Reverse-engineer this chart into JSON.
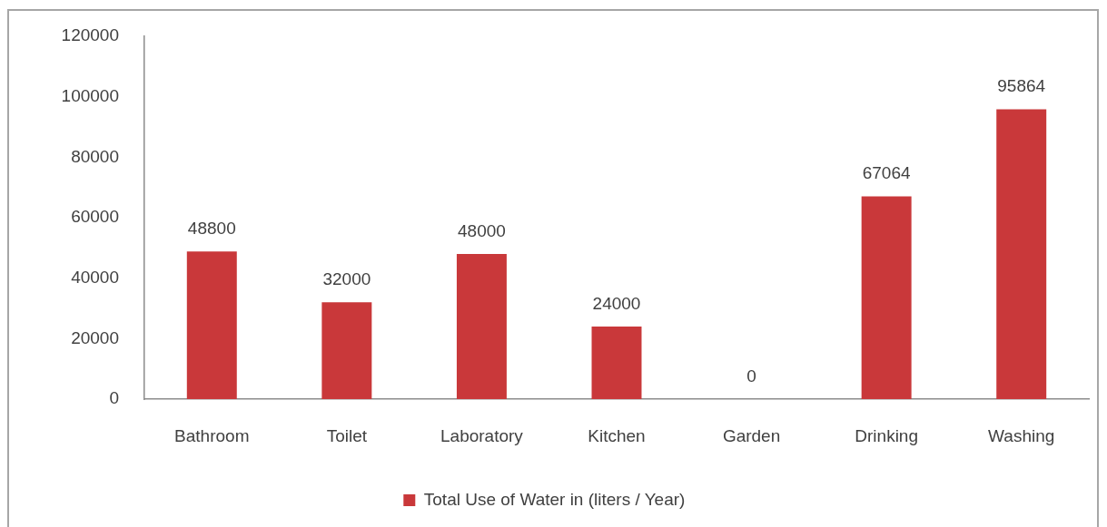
{
  "chart_data": {
    "type": "bar",
    "categories": [
      "Bathroom",
      "Toilet",
      "Laboratory",
      "Kitchen",
      "Garden",
      "Drinking",
      "Washing"
    ],
    "series": [
      {
        "name": "Total Use of Water in (liters / Year)",
        "color": "#c9383a",
        "values": [
          48800,
          32000,
          48000,
          24000,
          0,
          67064,
          95864
        ]
      }
    ],
    "ylim": [
      0,
      120000
    ],
    "yticks": [
      0,
      20000,
      40000,
      60000,
      80000,
      100000,
      120000
    ],
    "data_labels": true,
    "legend": "bottom"
  }
}
